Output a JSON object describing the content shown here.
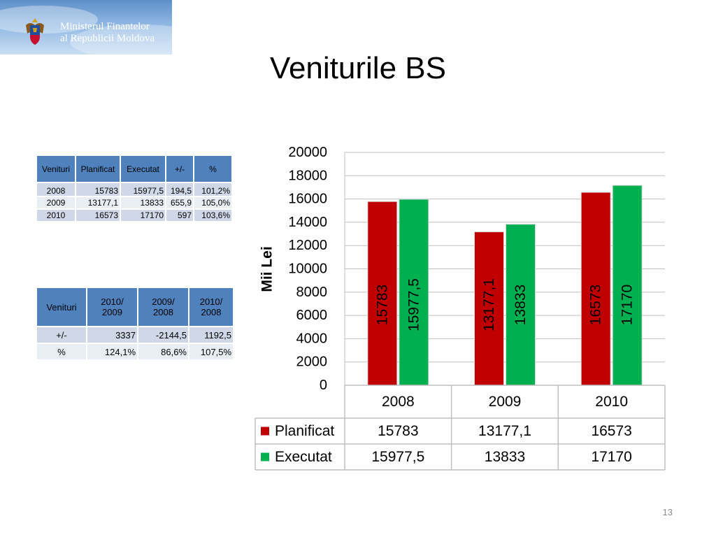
{
  "header": {
    "logo_line1": "Ministerul Finantelor",
    "logo_line2": "al Republicii Moldova",
    "title": "Veniturile BS"
  },
  "table1": {
    "headers": [
      "Venituri",
      "Planificat",
      "Executat",
      "+/-",
      "%"
    ],
    "rows": [
      [
        "2008",
        "15783",
        "15977,5",
        "194,5",
        "101,2%"
      ],
      [
        "2009",
        "13177,1",
        "13833",
        "655,9",
        "105,0%"
      ],
      [
        "2010",
        "16573",
        "17170",
        "597",
        "103,6%"
      ]
    ]
  },
  "table2": {
    "headers": [
      [
        "Venituri"
      ],
      [
        "2010/",
        "2009"
      ],
      [
        "2009/",
        "2008"
      ],
      [
        "2010/",
        "2008"
      ]
    ],
    "rows": [
      [
        "+/-",
        "3337",
        "-2144,5",
        "1192,5"
      ],
      [
        "%",
        "124,1%",
        "86,6%",
        "107,5%"
      ]
    ]
  },
  "chart_data": {
    "type": "bar",
    "categories": [
      "2008",
      "2009",
      "2010"
    ],
    "series": [
      {
        "name": "Planificat",
        "values": [
          15783,
          13177.1,
          16573
        ],
        "labels": [
          "15783",
          "13177,1",
          "16573"
        ],
        "color": "#c00000"
      },
      {
        "name": "Executat",
        "values": [
          15977.5,
          13833,
          17170
        ],
        "labels": [
          "15977,5",
          "13833",
          "17170"
        ],
        "color": "#00b050"
      }
    ],
    "ylabel": "Mii Lei",
    "ylim": [
      0,
      20000
    ],
    "yticks": [
      "0",
      "2000",
      "4000",
      "6000",
      "8000",
      "10000",
      "12000",
      "14000",
      "16000",
      "18000",
      "20000"
    ],
    "grid": true,
    "data_table": true
  },
  "page_number": "13"
}
